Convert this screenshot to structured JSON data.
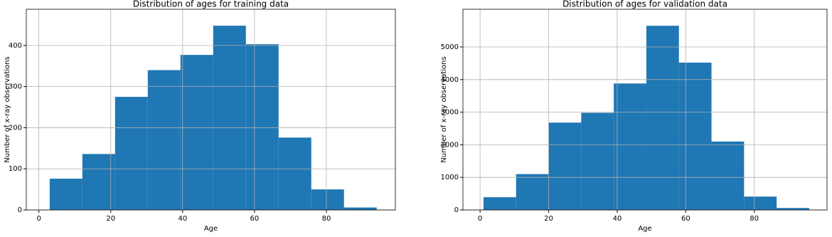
{
  "chart_data": [
    {
      "type": "histogram",
      "title": "Distribution of ages for training data",
      "xlabel": "Age",
      "ylabel": "Number of x-ray observations",
      "bins": [
        3,
        12.1,
        21.2,
        30.3,
        39.4,
        48.5,
        57.6,
        66.7,
        75.8,
        84.9,
        94
      ],
      "values": [
        76,
        136,
        275,
        340,
        377,
        448,
        403,
        176,
        50,
        6
      ],
      "color": "#1f77b4",
      "xlim": [
        -3.5,
        99.2
      ],
      "xticks": [
        0,
        20,
        40,
        60,
        80
      ],
      "ylim": [
        0,
        488
      ],
      "yticks": [
        0,
        100,
        200,
        300,
        400
      ],
      "grid": true
    },
    {
      "type": "histogram",
      "title": "Distribution of ages for validation data",
      "xlabel": "Age",
      "ylabel": "Number of x-ray observations",
      "bins": [
        1,
        10.5,
        20,
        29.5,
        39,
        48.5,
        58,
        67.5,
        77,
        86.5,
        96
      ],
      "values": [
        390,
        1100,
        2680,
        2980,
        3880,
        5650,
        4520,
        2100,
        410,
        60
      ],
      "color": "#1f77b4",
      "xlim": [
        -5,
        101.2
      ],
      "xticks": [
        0,
        20,
        40,
        60,
        80
      ],
      "ylim": [
        0,
        6157
      ],
      "yticks": [
        0,
        1000,
        2000,
        3000,
        4000,
        5000
      ],
      "grid": true
    }
  ]
}
